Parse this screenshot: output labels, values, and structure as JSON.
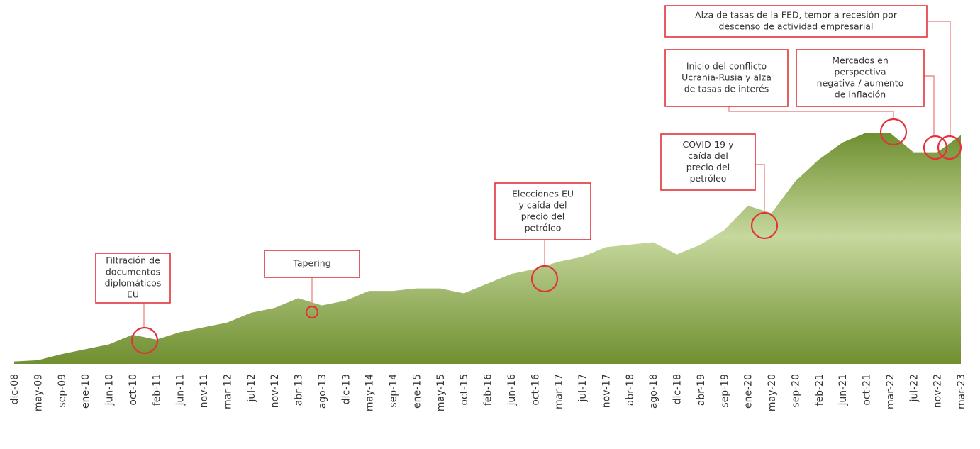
{
  "chart_data": {
    "type": "area",
    "categories": [
      "dic-08",
      "may-09",
      "sep-09",
      "ene-10",
      "jun-10",
      "oct-10",
      "feb-11",
      "jun-11",
      "nov-11",
      "mar-12",
      "jul-12",
      "nov-12",
      "abr-13",
      "ago-13",
      "dic-13",
      "may-14",
      "sep-14",
      "ene-15",
      "may-15",
      "oct-15",
      "feb-16",
      "jun-16",
      "oct-16",
      "mar-17",
      "jul-17",
      "nov-17",
      "abr-18",
      "ago-18",
      "dic-18",
      "abr-19",
      "sep-19",
      "ene-20",
      "may-20",
      "sep-20",
      "feb-21",
      "jun-21",
      "oct-21",
      "mar-22",
      "jul-22",
      "nov-22",
      "mar-23"
    ],
    "values": [
      1,
      1.5,
      4,
      6,
      8,
      12,
      10,
      13,
      15,
      17,
      21,
      23,
      27,
      24,
      26,
      30,
      30,
      31,
      31,
      29,
      33,
      37,
      39,
      42,
      44,
      48,
      49,
      50,
      45,
      49,
      55,
      65,
      62,
      75,
      84,
      91,
      95,
      95,
      87,
      87,
      94
    ],
    "ylim": [
      0,
      100
    ],
    "colors": [
      "#6f8f30",
      "#c6d89d"
    ],
    "annotations": [
      {
        "lines": [
          "Filtración de",
          "documentos",
          "diplomáticos",
          "EU"
        ]
      },
      {
        "lines": [
          "Tapering"
        ]
      },
      {
        "lines": [
          "Elecciones EU",
          "y caída del",
          "precio del",
          "petróleo"
        ]
      },
      {
        "lines": [
          "COVID-19 y",
          "caída del",
          "precio del",
          "petróleo"
        ]
      },
      {
        "lines": [
          "Inicio del conflicto",
          "Ucrania-Rusia y alza",
          "de tasas de interés"
        ]
      },
      {
        "lines": [
          "Mercados en",
          "perspectiva",
          "negativa / aumento",
          "de inflación"
        ]
      },
      {
        "lines": [
          "Alza de tasas de la FED, temor a recesión por",
          "descenso de actividad empresarial"
        ]
      }
    ]
  }
}
